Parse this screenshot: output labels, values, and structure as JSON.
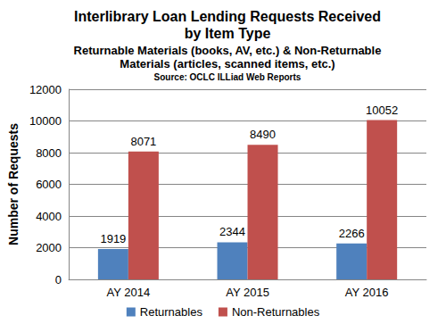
{
  "chart_data": {
    "type": "bar",
    "title": "Interlibrary Loan Lending Requests Received\nby Item Type",
    "subtitle": "Returnable Materials (books, AV, etc.) & Non-Returnable\nMaterials (articles, scanned items, etc.)",
    "annotations": [
      "Source: OCLC ILLiad Web Reports"
    ],
    "y_label": "Number of Requests",
    "categories": [
      "AY 2014",
      "AY 2015",
      "AY 2016"
    ],
    "series": [
      {
        "name": "Returnables",
        "color": "#4f81bd",
        "values": [
          1919,
          2344,
          2266
        ]
      },
      {
        "name": "Non-Returnables",
        "color": "#c0504d",
        "values": [
          8071,
          8490,
          10052
        ]
      }
    ],
    "ylim": [
      0,
      12000
    ],
    "yticks": [
      0,
      2000,
      4000,
      6000,
      8000,
      10000,
      12000
    ],
    "grid": true,
    "legend": "bottom",
    "data_labels": true
  }
}
